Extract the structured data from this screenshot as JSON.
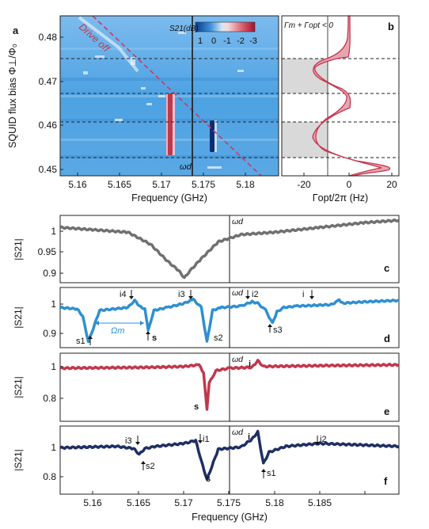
{
  "figure": {
    "panel_a": {
      "label": "a",
      "ylabel": "SQUID flux bias Φ⊥/Φ₀",
      "xlabel": "Frequency (GHz)",
      "x_ticks": [
        "5.16",
        "5.165",
        "5.17",
        "5.175",
        "5.18"
      ],
      "y_ticks": [
        "0.45",
        "0.46",
        "0.47",
        "0.48"
      ],
      "colorbar_title": "S21(dB)",
      "colorbar_ticks": [
        "1",
        "0",
        "-1",
        "-2",
        "-3"
      ],
      "annotation": "Drive off",
      "marker_label": "ωd"
    },
    "panel_b": {
      "label": "b",
      "xlabel": "Γopt/2π (Hz)",
      "x_ticks": [
        "-20",
        "0",
        "20"
      ],
      "legend": "Γm + Γopt < 0"
    },
    "panel_c": {
      "label": "c",
      "ylabel": "|S21|",
      "y_ticks": [
        "1",
        "0.95",
        "0.9"
      ],
      "marker_label": "ωd"
    },
    "panel_d": {
      "label": "d",
      "ylabel": "|S21|",
      "y_ticks": [
        "1",
        "0.9"
      ],
      "marker_label": "ωd",
      "annotations": [
        "i4",
        "i3",
        "i2",
        "i",
        "s1",
        "s",
        "s2",
        "s3"
      ],
      "spacing_label": "Ωm"
    },
    "panel_e": {
      "label": "e",
      "ylabel": "|S21|",
      "y_ticks": [
        "1",
        "0.8"
      ],
      "marker_label": "ωd",
      "annotations": [
        "i",
        "s"
      ]
    },
    "panel_f": {
      "label": "f",
      "ylabel": "|S21|",
      "y_ticks": [
        "1",
        "0.8"
      ],
      "marker_label": "ωd",
      "annotations": [
        "i3",
        "i1",
        "i",
        "i2",
        "s2",
        "s",
        "s1"
      ]
    },
    "bottom_xlabel": "Frequency (GHz)",
    "bottom_x_ticks": [
      "5.16",
      "5.165",
      "5.17",
      "5.175",
      "5.18",
      "5.185"
    ]
  },
  "chart_data": [
    {
      "panel": "a",
      "type": "heatmap",
      "x_range": [
        5.157,
        5.183
      ],
      "y_range": [
        0.45,
        0.486
      ],
      "color_range": [
        1,
        -3
      ],
      "drive_frequency_ghz": 5.1723,
      "drive_off_line": {
        "x": [
          5.1615,
          5.181
        ],
        "y": [
          0.486,
          0.45
        ]
      },
      "shaded_flux_bands": [
        [
          0.4685,
          0.4755
        ],
        [
          0.4535,
          0.4615
        ]
      ],
      "dashed_flux_levels": [
        0.4755,
        0.468,
        0.4615,
        0.4535
      ],
      "features": [
        {
          "name": "signal resonance",
          "x_center": 5.1702,
          "y_range": [
            0.455,
            0.468
          ],
          "strength_db": -3
        },
        {
          "name": "idler resonance",
          "x_center": 5.1745,
          "y_range": [
            0.4545,
            0.461
          ],
          "strength_db": -2.5
        }
      ]
    },
    {
      "panel": "b",
      "type": "line",
      "x_range": [
        -30,
        22
      ],
      "y_range": [
        0.45,
        0.486
      ],
      "threshold_x": -10,
      "series": [
        {
          "y": [
            0.486,
            0.482,
            0.479,
            0.477,
            0.476,
            0.4755,
            0.475,
            0.474,
            0.473,
            0.472,
            0.471,
            0.4695,
            0.4685,
            0.467,
            0.465,
            0.463,
            0.461,
            0.459,
            0.457,
            0.455,
            0.4537,
            0.4525,
            0.4515,
            0.451,
            0.4505,
            0.45
          ],
          "x": [
            0,
            0,
            0.2,
            0.6,
            -2,
            -8,
            -14,
            -17,
            -15,
            -10,
            -5,
            -1,
            0,
            0.3,
            0,
            -5,
            -11,
            -15,
            -15,
            -12,
            -4,
            6,
            15,
            18,
            16,
            12
          ]
        }
      ]
    },
    {
      "panel": "c",
      "type": "line",
      "x_range": [
        5.157,
        5.187
      ],
      "y_range": [
        0.88,
        1.02
      ],
      "x": [
        5.157,
        5.16,
        5.163,
        5.165,
        5.1665,
        5.1675,
        5.168,
        5.1685,
        5.1695,
        5.171,
        5.173,
        5.176,
        5.18,
        5.184,
        5.187
      ],
      "y": [
        0.995,
        0.99,
        0.985,
        0.96,
        0.925,
        0.905,
        0.89,
        0.905,
        0.93,
        0.965,
        0.98,
        0.985,
        0.995,
        1.005,
        1.01
      ]
    },
    {
      "panel": "d",
      "type": "line",
      "x_range": [
        5.157,
        5.187
      ],
      "y_range": [
        0.86,
        1.07
      ],
      "x": [
        5.157,
        5.1585,
        5.159,
        5.1595,
        5.1605,
        5.163,
        5.1636,
        5.164,
        5.1645,
        5.1648,
        5.1653,
        5.1665,
        5.168,
        5.1688,
        5.1695,
        5.17,
        5.1705,
        5.1713,
        5.173,
        5.174,
        5.1745,
        5.1752,
        5.1758,
        5.1762,
        5.1768,
        5.178,
        5.181,
        5.1817,
        5.182,
        5.184,
        5.187
      ],
      "y": [
        1.0,
        0.995,
        0.97,
        0.88,
        0.99,
        1.0,
        1.025,
        1.005,
        0.995,
        0.92,
        0.99,
        1.0,
        1.015,
        1.028,
        1.0,
        0.88,
        0.99,
        1.0,
        1.005,
        1.02,
        1.015,
        0.99,
        0.945,
        0.985,
        1.0,
        1.005,
        1.01,
        1.025,
        1.015,
        1.02,
        1.025
      ]
    },
    {
      "panel": "e",
      "type": "line",
      "x_range": [
        5.157,
        5.187
      ],
      "y_range": [
        0.67,
        1.08
      ],
      "x": [
        5.157,
        5.165,
        5.168,
        5.1693,
        5.1697,
        5.17,
        5.1702,
        5.1708,
        5.172,
        5.174,
        5.1745,
        5.175,
        5.18,
        5.187
      ],
      "y": [
        0.99,
        0.995,
        1.0,
        1.01,
        0.96,
        0.74,
        0.9,
        0.975,
        0.99,
        0.995,
        1.035,
        1.0,
        1.005,
        1.01
      ]
    },
    {
      "panel": "f",
      "type": "line",
      "x_range": [
        5.157,
        5.187
      ],
      "y_range": [
        0.67,
        1.14
      ],
      "x": [
        5.157,
        5.162,
        5.1635,
        5.164,
        5.1645,
        5.1655,
        5.168,
        5.169,
        5.1695,
        5.17,
        5.171,
        5.173,
        5.174,
        5.1745,
        5.175,
        5.1755,
        5.177,
        5.18,
        5.187
      ],
      "y": [
        0.99,
        1.0,
        0.985,
        0.945,
        0.985,
        1.0,
        1.02,
        1.04,
        0.9,
        0.77,
        0.98,
        0.995,
        1.05,
        1.1,
        0.88,
        0.96,
        1.0,
        1.02,
        1.0
      ]
    }
  ],
  "colors": {
    "panel_c": "#707070",
    "panel_d": "#2f8fd0",
    "panel_e": "#c2374d",
    "panel_f": "#1f2f63",
    "panel_b_curve": "#c2374d",
    "drive_off_line": "#d3365e",
    "heatmap_background": "#5aa8e4",
    "shade": "#d9d9d9"
  }
}
